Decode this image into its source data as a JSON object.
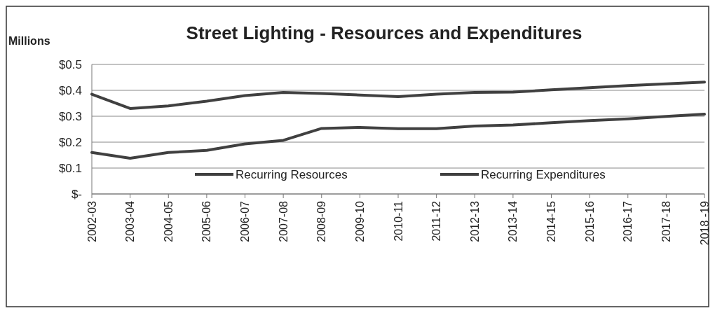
{
  "chart_data": {
    "type": "line",
    "title": "Street Lighting - Resources and Expenditures",
    "ylabel": "Millions",
    "categories": [
      "2002-03",
      "2003-04",
      "2004-05",
      "2005-06",
      "2006-07",
      "2007-08",
      "2008-09",
      "2009-10",
      "2010-11",
      "2011-12",
      "2012-13",
      "2013-14",
      "2014-15",
      "2015-16",
      "2016-17",
      "2017-18",
      "2018 -19"
    ],
    "series": [
      {
        "name": "Recurring Resources",
        "color": "#404040",
        "values": [
          0.385,
          0.33,
          0.34,
          0.358,
          0.38,
          0.392,
          0.388,
          0.382,
          0.376,
          0.385,
          0.392,
          0.393,
          0.402,
          0.41,
          0.418,
          0.425,
          0.432
        ]
      },
      {
        "name": "Recurring Expenditures",
        "color": "#404040",
        "values": [
          0.16,
          0.138,
          0.16,
          0.168,
          0.193,
          0.207,
          0.253,
          0.257,
          0.252,
          0.252,
          0.262,
          0.266,
          0.275,
          0.283,
          0.29,
          0.299,
          0.308
        ]
      }
    ],
    "ylim": [
      0,
      0.5
    ],
    "yticks": [
      {
        "value": 0,
        "label": "$-"
      },
      {
        "value": 0.1,
        "label": "$0.1"
      },
      {
        "value": 0.2,
        "label": "$0.2"
      },
      {
        "value": 0.3,
        "label": "$0.3"
      },
      {
        "value": 0.4,
        "label": "$0.4"
      },
      {
        "value": 0.5,
        "label": "$0.5"
      }
    ],
    "grid": "y",
    "legend": "bottom",
    "marker": "none",
    "line_style": "solid"
  }
}
